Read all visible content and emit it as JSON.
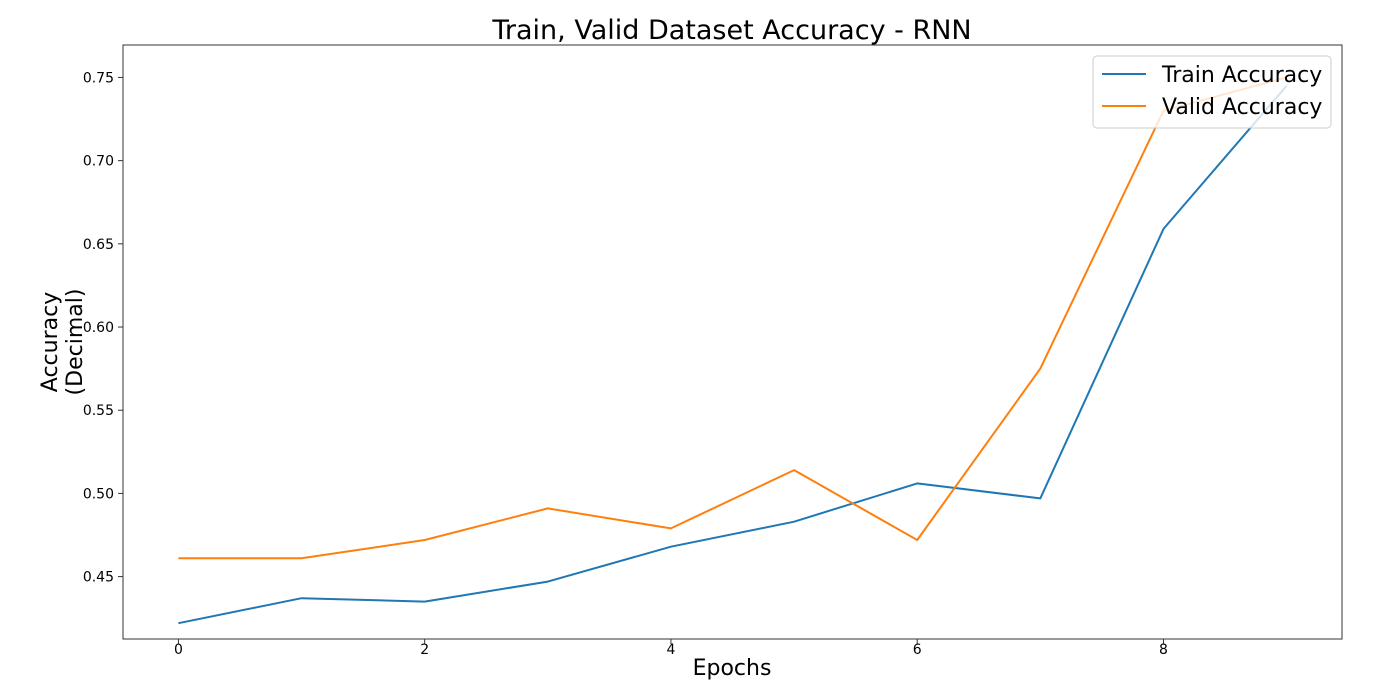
{
  "chart_data": {
    "type": "line",
    "title": "Train, Valid Dataset Accuracy - RNN",
    "xlabel": "Epochs",
    "ylabel": [
      "Accuracy",
      "(Decimal)"
    ],
    "xlim": [
      -0.45,
      9.45
    ],
    "ylim": [
      0.4125,
      0.7695
    ],
    "x_ticks": [
      0,
      2,
      4,
      6,
      8
    ],
    "y_ticks": [
      0.45,
      0.5,
      0.55,
      0.6,
      0.65,
      0.7,
      0.75
    ],
    "y_tick_labels": [
      "0.45",
      "0.50",
      "0.55",
      "0.60",
      "0.65",
      "0.70",
      "0.75"
    ],
    "grid": false,
    "legend_position": "top-right",
    "x": [
      0,
      1,
      2,
      3,
      4,
      5,
      6,
      7,
      8,
      9
    ],
    "series": [
      {
        "name": "Train Accuracy",
        "color": "#1f77b4",
        "values": [
          0.422,
          0.437,
          0.435,
          0.447,
          0.468,
          0.483,
          0.506,
          0.497,
          0.659,
          0.745
        ]
      },
      {
        "name": "Valid Accuracy",
        "color": "#ff7f0e",
        "values": [
          0.461,
          0.461,
          0.472,
          0.491,
          0.479,
          0.514,
          0.472,
          0.575,
          0.73,
          0.75
        ]
      }
    ]
  }
}
